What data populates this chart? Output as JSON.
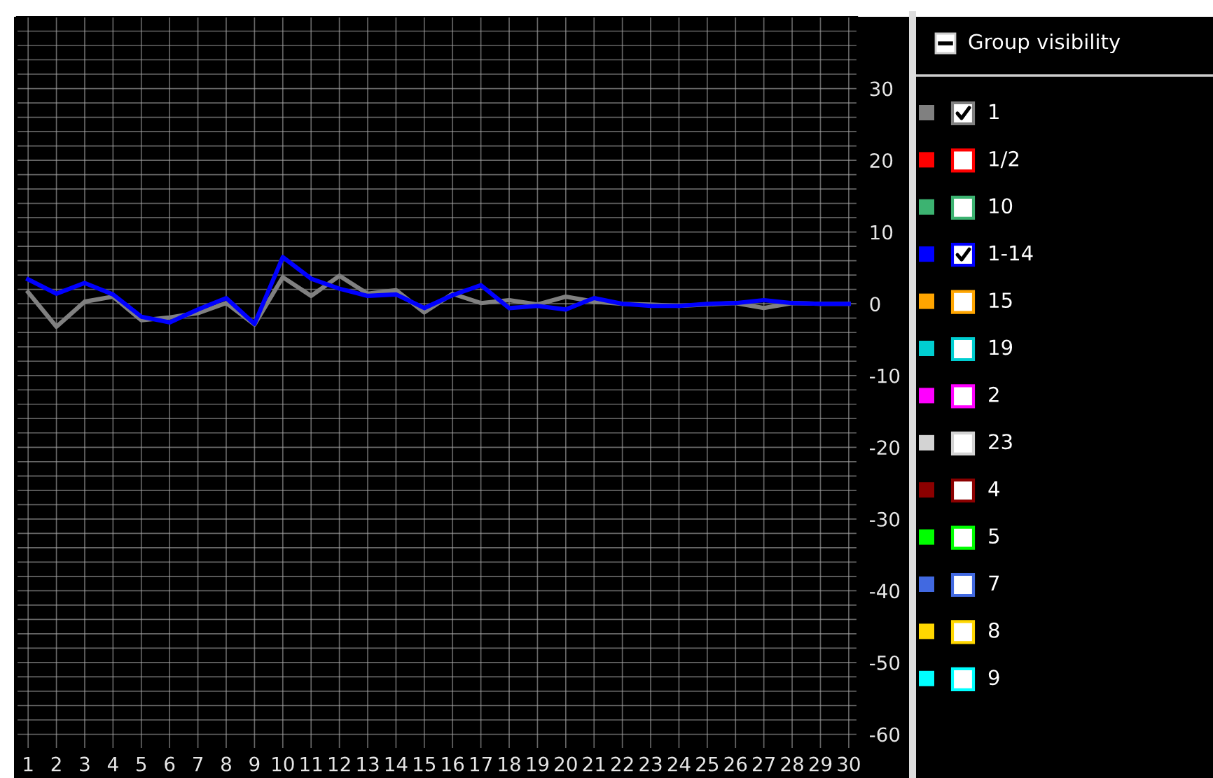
{
  "chart_data": {
    "type": "line",
    "x": [
      1,
      2,
      3,
      4,
      5,
      6,
      7,
      8,
      9,
      10,
      11,
      12,
      13,
      14,
      15,
      16,
      17,
      18,
      19,
      20,
      21,
      22,
      23,
      24,
      25,
      26,
      27,
      28,
      29,
      30
    ],
    "series": [
      {
        "name": "1",
        "color": "#808080",
        "values": [
          1.6,
          -3.2,
          0.3,
          1.0,
          -2.3,
          -1.9,
          -1.3,
          0.1,
          -2.9,
          3.7,
          1.1,
          3.9,
          1.4,
          1.9,
          -1.2,
          1.4,
          0.1,
          0.5,
          -0.1,
          1.0,
          0.3,
          0,
          -0.1,
          -0.3,
          -0.1,
          0.1,
          -0.6,
          0.1,
          0,
          0
        ]
      },
      {
        "name": "1/2",
        "color": "#ff0000",
        "values": [
          null,
          null,
          null,
          null,
          null,
          null,
          null,
          null,
          null,
          null,
          null,
          null,
          null,
          null,
          null,
          null,
          null,
          null,
          null,
          null,
          null,
          null,
          null,
          null,
          null,
          null,
          null,
          null,
          null,
          null
        ]
      },
      {
        "name": "10",
        "color": "#3cb371",
        "values": [
          null,
          null,
          null,
          null,
          null,
          null,
          null,
          null,
          null,
          null,
          null,
          null,
          null,
          null,
          null,
          null,
          null,
          null,
          null,
          null,
          null,
          null,
          null,
          null,
          null,
          null,
          null,
          null,
          null,
          null
        ]
      },
      {
        "name": "1-14",
        "color": "#0000ff",
        "values": [
          3.4,
          1.4,
          2.9,
          1.3,
          -1.8,
          -2.6,
          -0.8,
          0.8,
          -2.8,
          6.5,
          3.5,
          2.1,
          1.1,
          1.3,
          -0.6,
          1.2,
          2.6,
          -0.6,
          -0.3,
          -0.8,
          0.8,
          0,
          -0.3,
          -0.3,
          0,
          0.1,
          0.5,
          0.1,
          0,
          0
        ]
      },
      {
        "name": "15",
        "color": "#ffa500",
        "values": [
          null,
          null,
          null,
          null,
          null,
          null,
          null,
          null,
          null,
          null,
          null,
          null,
          null,
          null,
          null,
          null,
          null,
          null,
          null,
          null,
          null,
          null,
          null,
          null,
          null,
          null,
          null,
          null,
          null,
          null
        ]
      },
      {
        "name": "19",
        "color": "#00ced1",
        "values": [
          null,
          null,
          null,
          null,
          null,
          null,
          null,
          null,
          null,
          null,
          null,
          null,
          null,
          null,
          null,
          null,
          null,
          null,
          null,
          null,
          null,
          null,
          null,
          null,
          null,
          null,
          null,
          null,
          null,
          null
        ]
      },
      {
        "name": "2",
        "color": "#ff00ff",
        "values": [
          null,
          null,
          null,
          null,
          null,
          null,
          null,
          null,
          null,
          null,
          null,
          null,
          null,
          null,
          null,
          null,
          null,
          null,
          null,
          null,
          null,
          null,
          null,
          null,
          null,
          null,
          null,
          null,
          null,
          null
        ]
      },
      {
        "name": "23",
        "color": "#d3d3d3",
        "values": [
          null,
          null,
          null,
          null,
          null,
          null,
          null,
          null,
          null,
          null,
          null,
          null,
          null,
          null,
          null,
          null,
          null,
          null,
          null,
          null,
          null,
          null,
          null,
          null,
          null,
          null,
          null,
          null,
          null,
          null
        ]
      },
      {
        "name": "4",
        "color": "#8b0000",
        "values": [
          null,
          null,
          null,
          null,
          null,
          null,
          null,
          null,
          null,
          null,
          null,
          null,
          null,
          null,
          null,
          null,
          null,
          null,
          null,
          null,
          null,
          null,
          null,
          null,
          null,
          null,
          null,
          null,
          null,
          null
        ]
      },
      {
        "name": "5",
        "color": "#00ff00",
        "values": [
          null,
          null,
          null,
          null,
          null,
          null,
          null,
          null,
          null,
          null,
          null,
          null,
          null,
          null,
          null,
          null,
          null,
          null,
          null,
          null,
          null,
          null,
          null,
          null,
          null,
          null,
          null,
          null,
          null,
          null
        ]
      },
      {
        "name": "7",
        "color": "#4169e1",
        "values": [
          null,
          null,
          null,
          null,
          null,
          null,
          null,
          null,
          null,
          null,
          null,
          null,
          null,
          null,
          null,
          null,
          null,
          null,
          null,
          null,
          null,
          null,
          null,
          null,
          null,
          null,
          null,
          null,
          null,
          null
        ]
      },
      {
        "name": "8",
        "color": "#ffd700",
        "values": [
          null,
          null,
          null,
          null,
          null,
          null,
          null,
          null,
          null,
          null,
          null,
          null,
          null,
          null,
          null,
          null,
          null,
          null,
          null,
          null,
          null,
          null,
          null,
          null,
          null,
          null,
          null,
          null,
          null,
          null
        ]
      },
      {
        "name": "9",
        "color": "#00ffff",
        "values": [
          null,
          null,
          null,
          null,
          null,
          null,
          null,
          null,
          null,
          null,
          null,
          null,
          null,
          null,
          null,
          null,
          null,
          null,
          null,
          null,
          null,
          null,
          null,
          null,
          null,
          null,
          null,
          null,
          null,
          null
        ]
      }
    ],
    "xlim": [
      0.6,
      30.3
    ],
    "xticks": [
      1,
      2,
      3,
      4,
      5,
      6,
      7,
      8,
      9,
      10,
      11,
      12,
      13,
      14,
      15,
      16,
      17,
      18,
      19,
      20,
      21,
      22,
      23,
      24,
      25,
      26,
      27,
      28,
      29,
      30
    ],
    "ylim": [
      -62,
      40
    ],
    "yticks": [
      {
        "value": -62,
        "label": null
      },
      -60,
      {
        "value": -58,
        "label": null
      },
      {
        "value": -56,
        "label": null
      },
      {
        "value": -54,
        "label": null
      },
      {
        "value": -52,
        "label": null
      },
      -50,
      {
        "value": -48,
        "label": null
      },
      {
        "value": -46,
        "label": null
      },
      {
        "value": -44,
        "label": null
      },
      {
        "value": -42,
        "label": null
      },
      -40,
      {
        "value": -38,
        "label": null
      },
      {
        "value": -36,
        "label": null
      },
      {
        "value": -34,
        "label": null
      },
      {
        "value": -32,
        "label": null
      },
      -30,
      {
        "value": -28,
        "label": null
      },
      {
        "value": -26,
        "label": null
      },
      {
        "value": -24,
        "label": null
      },
      {
        "value": -22,
        "label": null
      },
      -20,
      {
        "value": -18,
        "label": null
      },
      {
        "value": -16,
        "label": null
      },
      {
        "value": -14,
        "label": null
      },
      {
        "value": -12,
        "label": null
      },
      -10,
      {
        "value": -8,
        "label": null
      },
      {
        "value": -6,
        "label": null
      },
      {
        "value": -4,
        "label": null
      },
      {
        "value": -2,
        "label": null
      },
      0,
      {
        "value": 2,
        "label": null
      },
      {
        "value": 4,
        "label": null
      },
      {
        "value": 6,
        "label": null
      },
      {
        "value": 8,
        "label": null
      },
      10,
      {
        "value": 12,
        "label": null
      },
      {
        "value": 14,
        "label": null
      },
      {
        "value": 16,
        "label": null
      },
      {
        "value": 18,
        "label": null
      },
      20,
      {
        "value": 22,
        "label": null
      },
      {
        "value": 24,
        "label": null
      },
      {
        "value": 26,
        "label": null
      },
      {
        "value": 28,
        "label": null
      },
      30,
      {
        "value": 32,
        "label": null
      },
      {
        "value": 34,
        "label": null
      },
      {
        "value": 36,
        "label": null
      },
      {
        "value": 38,
        "label": null
      }
    ],
    "grid": true,
    "legend": "right",
    "legend_title": "Group visibility",
    "marker": "none",
    "line_style": "solid"
  }
}
